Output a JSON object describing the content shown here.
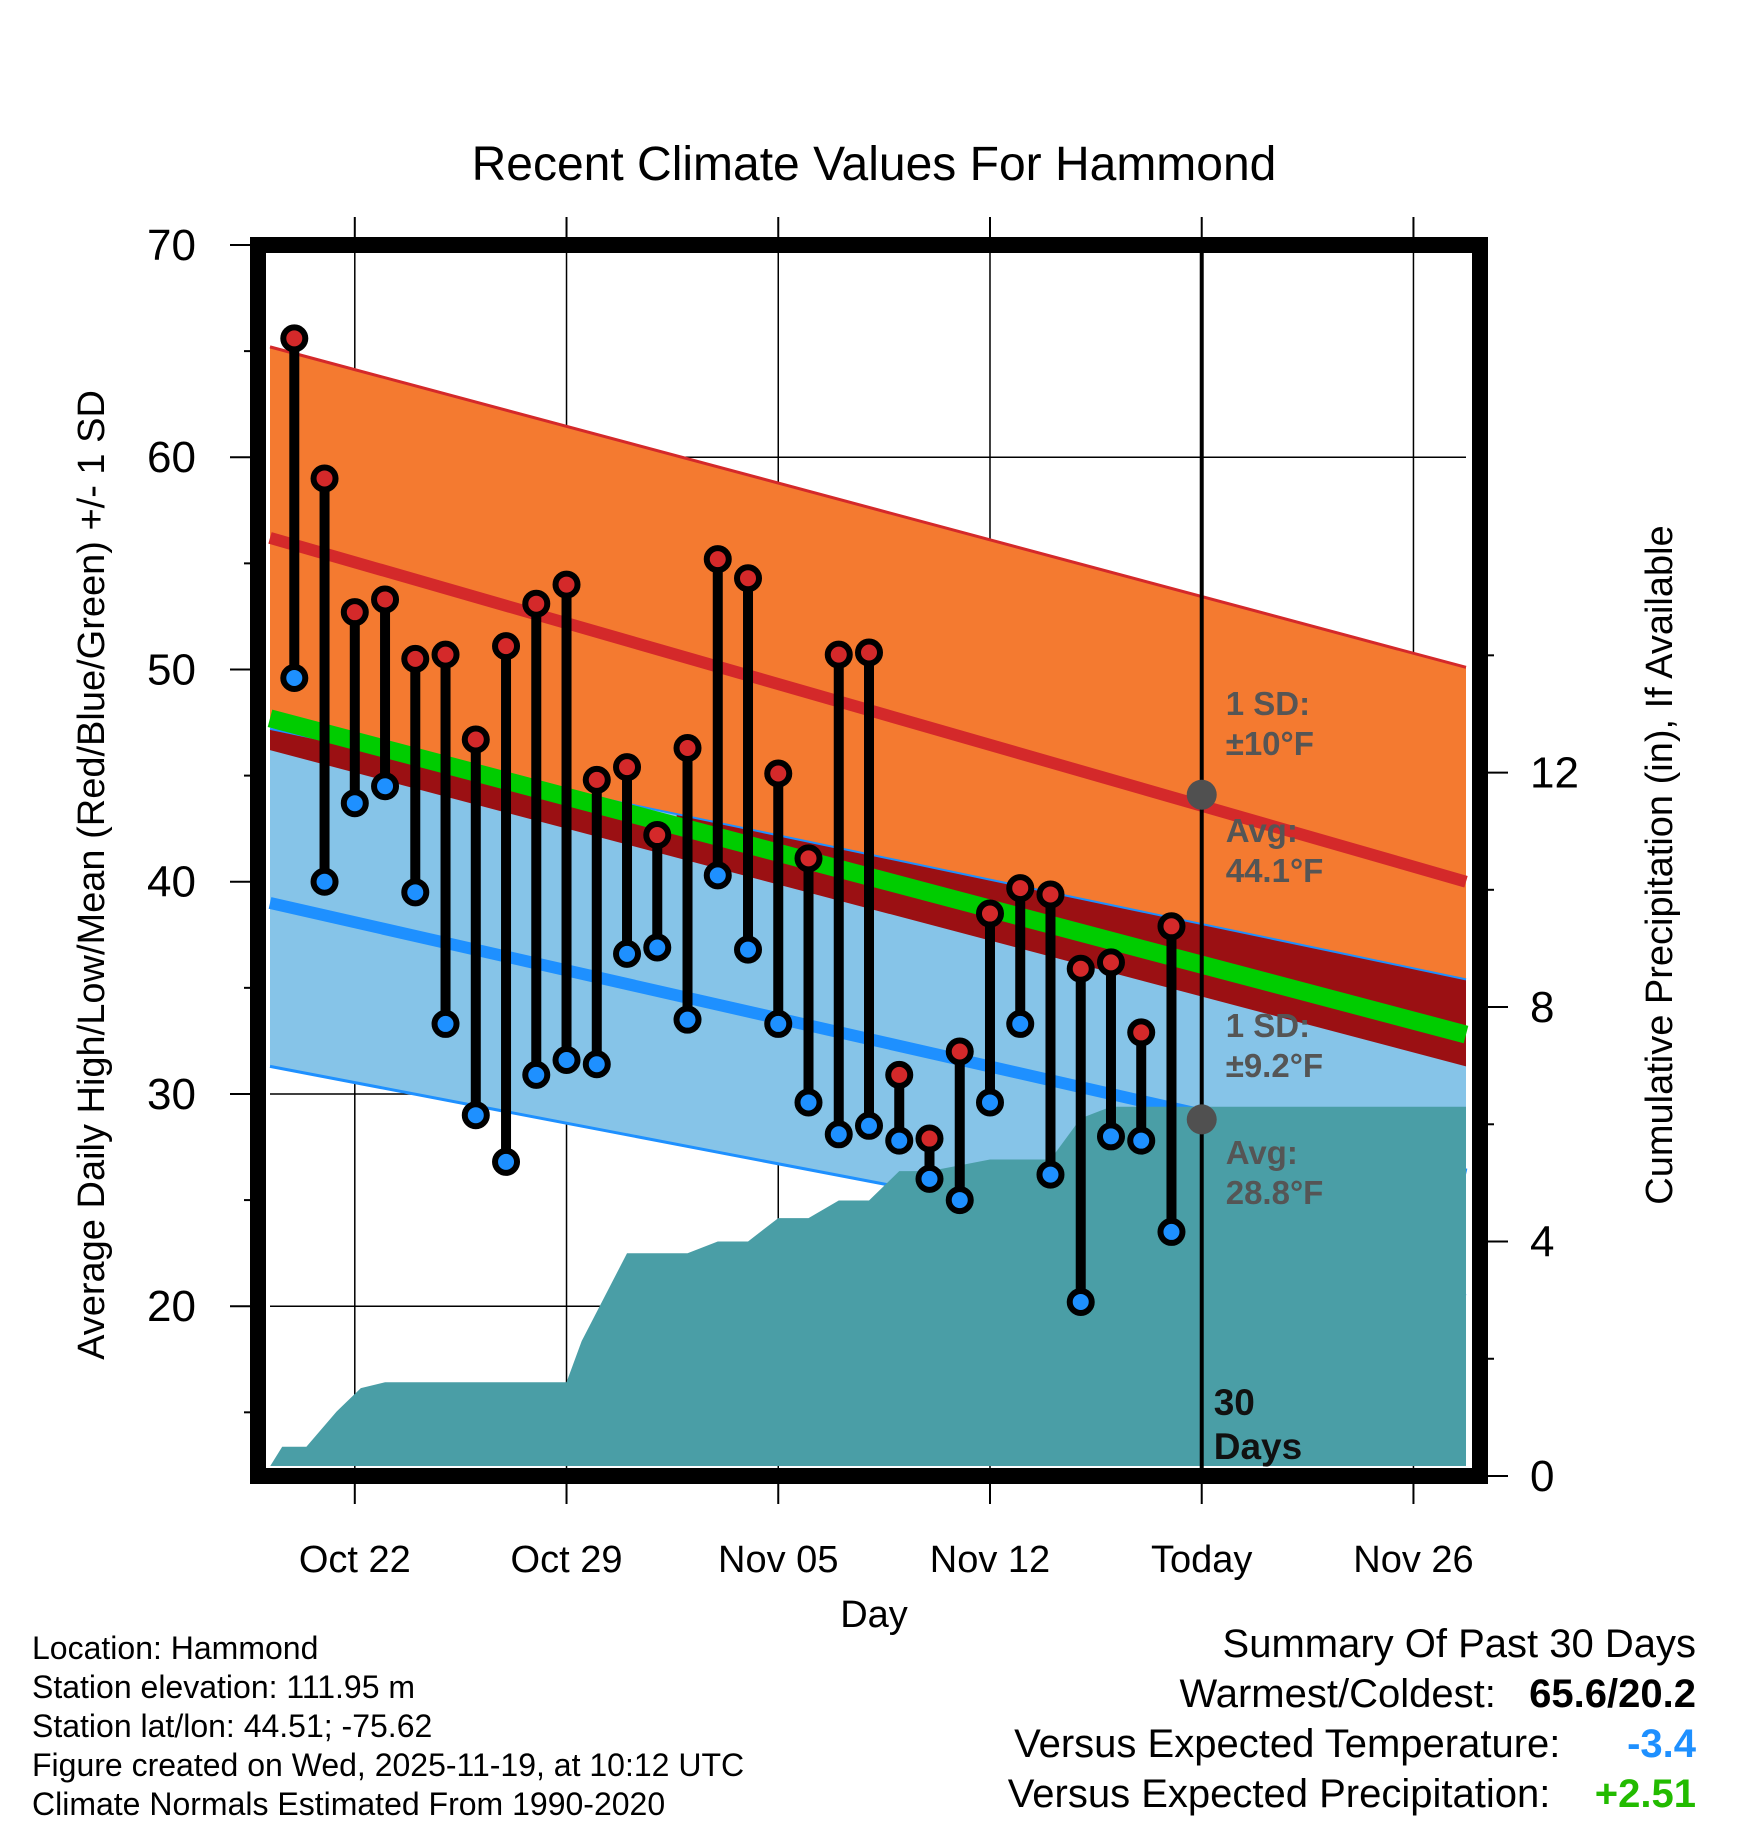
{
  "chart_data": {
    "type": "line",
    "title": "Recent Climate Values For Hammond",
    "xlabel": "Day",
    "ylabel": "Average Daily High/Low/Mean (Red/Blue/Green) +/- 1 SD",
    "y2label": "Cumulative Precipitation (in), If Available",
    "ylim": [
      12,
      70
    ],
    "y2lim": [
      0,
      21
    ],
    "yticks": [
      20,
      30,
      40,
      50,
      60,
      70
    ],
    "y2ticks": [
      0,
      4,
      8,
      12
    ],
    "xlim": [
      -3.2,
      37.2
    ],
    "xticks": [
      {
        "day": 0,
        "label": "Oct 22"
      },
      {
        "day": 7,
        "label": "Oct 29"
      },
      {
        "day": 14,
        "label": "Nov 05"
      },
      {
        "day": 21,
        "label": "Nov 12"
      },
      {
        "day": 28,
        "label": "Today"
      },
      {
        "day": 35,
        "label": "Nov 26"
      }
    ],
    "today_day": 28,
    "days_label": [
      "30",
      "Days"
    ],
    "normals": {
      "high_avg": {
        "start": 56.2,
        "end": 40.0
      },
      "high_upper": {
        "start": 65.2,
        "end": 50.1
      },
      "high_lower": {
        "start": 47.2,
        "end": 35.4
      },
      "low_avg": {
        "start": 39.0,
        "end": 26.2
      },
      "low_upper": {
        "start": 47.2,
        "end": 35.4
      },
      "low_lower": {
        "start": 31.3,
        "end": 20.5
      },
      "mean_avg": {
        "start": 47.7,
        "end": 32.8
      }
    },
    "annotations": {
      "high_sd": [
        "1 SD:",
        "±10°F"
      ],
      "high_avg": [
        "Avg:",
        "44.1°F"
      ],
      "low_sd": [
        "1 SD:",
        "±9.2°F"
      ],
      "low_avg": [
        "Avg:",
        "28.8°F"
      ],
      "high_avg_today": 44.1,
      "low_avg_today": 28.8
    },
    "series": [
      {
        "name": "Daily High",
        "days": [
          -2,
          -1,
          0,
          1,
          2,
          3,
          4,
          5,
          6,
          7,
          8,
          9,
          10,
          11,
          12,
          13,
          14,
          15,
          16,
          17,
          18,
          19,
          20,
          21,
          22,
          23,
          24,
          25,
          26,
          27
        ],
        "values": [
          65.6,
          59.0,
          52.7,
          53.3,
          50.5,
          50.7,
          46.7,
          51.1,
          53.1,
          54.0,
          44.8,
          45.4,
          42.2,
          46.3,
          55.2,
          54.3,
          45.1,
          41.1,
          50.7,
          50.8,
          30.9,
          27.9,
          32.0,
          38.5,
          39.7,
          39.4,
          35.9,
          36.2,
          32.9,
          37.9
        ]
      },
      {
        "name": "Daily Low",
        "days": [
          -2,
          -1,
          0,
          1,
          2,
          3,
          4,
          5,
          6,
          7,
          8,
          9,
          10,
          11,
          12,
          13,
          14,
          15,
          16,
          17,
          18,
          19,
          20,
          21,
          22,
          23,
          24,
          25,
          26,
          27
        ],
        "values": [
          49.6,
          40.0,
          43.7,
          44.5,
          39.5,
          33.3,
          29.0,
          26.8,
          30.9,
          31.6,
          31.4,
          36.6,
          36.9,
          33.5,
          40.3,
          36.8,
          33.3,
          29.6,
          28.1,
          28.5,
          27.8,
          26.0,
          25.0,
          29.6,
          33.3,
          26.2,
          20.2,
          28.0,
          27.8,
          23.5
        ]
      },
      {
        "name": "Cumulative Precipitation",
        "days": [
          -3,
          -2.4,
          -1.6,
          -0.6,
          0.2,
          1,
          2,
          3,
          4,
          5,
          6,
          7,
          7.5,
          8.2,
          9,
          10,
          11,
          12,
          13,
          14,
          15,
          16,
          17,
          18,
          19,
          20,
          21,
          22,
          23,
          24,
          24.5,
          25,
          26,
          27,
          28,
          37.2
        ],
        "values": [
          0,
          0.5,
          0.5,
          1.1,
          1.5,
          1.6,
          1.6,
          1.6,
          1.6,
          1.6,
          1.6,
          1.6,
          2.3,
          3.0,
          3.8,
          3.8,
          3.8,
          4.0,
          4.0,
          4.4,
          4.4,
          4.7,
          4.7,
          5.2,
          5.2,
          5.3,
          5.4,
          5.4,
          5.4,
          6.1,
          6.2,
          6.3,
          6.3,
          6.3,
          6.3,
          6.3
        ]
      }
    ]
  },
  "footer": {
    "location": "Location: Hammond",
    "elevation": "Station elevation: 111.95 m",
    "latlon": "Station lat/lon: 44.51; -75.62",
    "created": "Figure created on Wed, 2025-11-19, at 10:12 UTC",
    "normals": "Climate Normals Estimated From 1990-2020"
  },
  "summary": {
    "title": "Summary Of Past 30 Days",
    "warmest_label": "Warmest/Coldest:",
    "warmest_value": "65.6/20.2",
    "temp_label": "Versus Expected Temperature:",
    "temp_value": "-3.4",
    "precip_label": "Versus Expected Precipitation:",
    "precip_value": "+2.51"
  },
  "colors": {
    "high_band": "#f47a30",
    "high_line": "#d4292a",
    "low_band": "#86c4e8",
    "low_line": "#1e90ff",
    "overlap": "#9b1013",
    "mean": "#00cc00",
    "precip": "#4a9ea6",
    "annotation": "#555555",
    "temp_anomaly": "#1e90ff",
    "precip_anomaly": "#22bb00"
  }
}
